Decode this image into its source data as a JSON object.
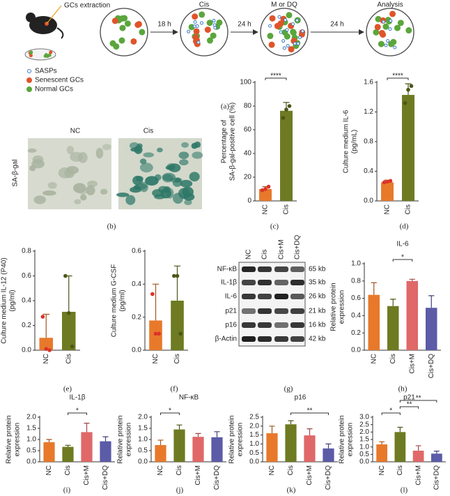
{
  "diagram": {
    "panel": "(a)",
    "steps": [
      "GCs extraction",
      "Cis",
      "M or DQ",
      "Analysis"
    ],
    "durations": [
      "18 h",
      "24 h",
      "24 h"
    ],
    "legend": [
      "SASPs",
      "Senescent GCs",
      "Normal GCs"
    ]
  },
  "micrographs": {
    "panel": "(b)",
    "stain": "SA-β-gal",
    "groups": [
      "NC",
      "Cis"
    ]
  },
  "blot": {
    "panel": "(g)",
    "lanes": [
      "NC",
      "Cis",
      "Cis+M",
      "Cis+DQ"
    ],
    "rows": [
      {
        "protein": "NF-κB",
        "size": "65 kb"
      },
      {
        "protein": "IL-1β",
        "size": "35 kb"
      },
      {
        "protein": "IL-6",
        "size": "26 kb"
      },
      {
        "protein": "p21",
        "size": "21 kb"
      },
      {
        "protein": "p16",
        "size": "16 kb"
      },
      {
        "protein": "β-Actin",
        "size": "42 kb"
      }
    ]
  },
  "chart_data": [
    {
      "type": "bar",
      "panel": "(c)",
      "ylabel": [
        "Percentage of",
        "SA-β-gal-positive cell (%)"
      ],
      "categories": [
        "NC",
        "Cis"
      ],
      "values": [
        10,
        76
      ],
      "errors": [
        2,
        7
      ],
      "colors": [
        "#e8792b",
        "#6e7b22"
      ],
      "points": [
        [
          9,
          10,
          12
        ],
        [
          70,
          77,
          80
        ]
      ],
      "ylim": [
        0,
        100
      ],
      "yticks": [
        0,
        20,
        40,
        60,
        80,
        100
      ],
      "significance": [
        {
          "pair": [
            "NC",
            "Cis"
          ],
          "label": "****"
        }
      ]
    },
    {
      "type": "bar",
      "panel": "(d)",
      "ylabel": [
        "Culture medium IL-6",
        "(pg/mL)"
      ],
      "categories": [
        "NC",
        "Cis"
      ],
      "values": [
        0.25,
        1.43
      ],
      "errors": [
        0.03,
        0.15
      ],
      "colors": [
        "#e8792b",
        "#6e7b22"
      ],
      "points": [
        [
          0.25,
          0.26,
          0.27
        ],
        [
          1.32,
          1.5,
          1.55
        ]
      ],
      "ylim": [
        0,
        1.6
      ],
      "yticks": [
        {
          "value": 0,
          "label": "0.0"
        },
        0.4,
        0.8,
        1.2,
        1.6
      ],
      "significance": [
        {
          "pair": [
            "NC",
            "Cis"
          ],
          "label": "****"
        }
      ]
    },
    {
      "type": "bar",
      "panel": "(e)",
      "ylabel": [
        "Culture medium IL-12 (P40)",
        "(pg/ml)"
      ],
      "categories": [
        "NC",
        "Cis"
      ],
      "values": [
        0.1,
        0.31
      ],
      "errors": [
        0.19,
        0.29
      ],
      "colors": [
        "#e8792b",
        "#6e7b22"
      ],
      "points": [
        [
          0.27,
          0.01,
          0.0
        ],
        [
          0.6,
          0.3,
          0.03
        ]
      ],
      "ylim": [
        0,
        0.8
      ],
      "yticks": [
        {
          "value": 0,
          "label": "0.0"
        },
        0.2,
        0.4,
        0.6,
        0.8
      ],
      "significance": []
    },
    {
      "type": "bar",
      "panel": "(f)",
      "ylabel": [
        "Culture medium G-CSF",
        "(pg/ml)"
      ],
      "categories": [
        "NC",
        "Cis"
      ],
      "values": [
        0.18,
        0.3
      ],
      "errors": [
        0.22,
        0.21
      ],
      "colors": [
        "#e8792b",
        "#6e7b22"
      ],
      "points": [
        [
          0.34,
          0.1,
          0.1
        ],
        [
          0.45,
          0.45,
          0.1
        ]
      ],
      "ylim": [
        0,
        0.6
      ],
      "yticks": [
        {
          "value": 0,
          "label": "0.0"
        },
        0.2,
        0.4,
        0.6
      ],
      "significance": []
    },
    {
      "type": "bar",
      "panel": "(h)",
      "title": "IL-6",
      "ylabel": [
        "Relative protein",
        "expression"
      ],
      "categories": [
        "NC",
        "Cis",
        "Cis+M",
        "Cis+DQ"
      ],
      "values": [
        0.64,
        0.51,
        0.8,
        0.49
      ],
      "errors": [
        0.14,
        0.08,
        0.02,
        0.14
      ],
      "colors": [
        "#e8792b",
        "#6e7b22",
        "#e06868",
        "#5b5ba8"
      ],
      "ylim": [
        0,
        1
      ],
      "yticks": [
        {
          "value": 0,
          "label": "0.0"
        },
        0.2,
        0.4,
        0.6,
        0.8,
        {
          "value": 1,
          "label": "1.0"
        }
      ],
      "significance": [
        {
          "pair": [
            "Cis",
            "Cis+M"
          ],
          "label": "*"
        }
      ]
    },
    {
      "type": "bar",
      "panel": "(i)",
      "title": "IL-1β",
      "ylabel": [
        "Relative protein",
        "expression"
      ],
      "categories": [
        "NC",
        "Cis",
        "Cis+M",
        "Cis+DQ"
      ],
      "values": [
        0.88,
        0.67,
        1.33,
        0.92
      ],
      "errors": [
        0.12,
        0.07,
        0.4,
        0.2
      ],
      "colors": [
        "#e8792b",
        "#6e7b22",
        "#e06868",
        "#5b5ba8"
      ],
      "ylim": [
        0,
        2
      ],
      "yticks": [
        {
          "value": 0,
          "label": "0.0"
        },
        0.5,
        {
          "value": 1,
          "label": "1.0"
        },
        1.5,
        {
          "value": 2,
          "label": "2.0"
        }
      ],
      "significance": [
        {
          "pair": [
            "Cis",
            "Cis+M"
          ],
          "label": "*"
        }
      ]
    },
    {
      "type": "bar",
      "panel": "(j)",
      "title": "NF-κB",
      "ylabel": [
        "Relative protein",
        "expression"
      ],
      "categories": [
        "NC",
        "Cis",
        "Cis+M",
        "Cis+DQ"
      ],
      "values": [
        0.75,
        1.45,
        1.12,
        1.1
      ],
      "errors": [
        0.22,
        0.2,
        0.15,
        0.25
      ],
      "colors": [
        "#e8792b",
        "#6e7b22",
        "#e06868",
        "#5b5ba8"
      ],
      "ylim": [
        0,
        2
      ],
      "yticks": [
        {
          "value": 0,
          "label": "0.0"
        },
        0.5,
        {
          "value": 1,
          "label": "1.0"
        },
        1.5,
        {
          "value": 2,
          "label": "2.0"
        }
      ],
      "significance": [
        {
          "pair": [
            "NC",
            "Cis"
          ],
          "label": "*"
        }
      ]
    },
    {
      "type": "bar",
      "panel": "(k)",
      "title": "p16",
      "ylabel": [
        "Relative protein",
        "expression"
      ],
      "categories": [
        "NC",
        "Cis",
        "Cis+M",
        "Cis+DQ"
      ],
      "values": [
        1.6,
        2.1,
        1.48,
        0.75
      ],
      "errors": [
        0.4,
        0.2,
        0.37,
        0.25
      ],
      "colors": [
        "#e8792b",
        "#6e7b22",
        "#e06868",
        "#5b5ba8"
      ],
      "ylim": [
        0,
        2.5
      ],
      "yticks": [
        {
          "value": 0,
          "label": "0.0"
        },
        0.5,
        {
          "value": 1,
          "label": "1.0"
        },
        1.5,
        {
          "value": 2,
          "label": "2.0"
        },
        2.5
      ],
      "significance": [
        {
          "pair": [
            "Cis",
            "Cis+DQ"
          ],
          "label": "**"
        }
      ]
    },
    {
      "type": "bar",
      "panel": "(l)",
      "title": "p21",
      "ylabel": [
        "Relative protein",
        "expression"
      ],
      "categories": [
        "NC",
        "Cis",
        "Cis+M",
        "Cis+DQ"
      ],
      "values": [
        1.17,
        2.0,
        0.75,
        0.55
      ],
      "errors": [
        0.18,
        0.32,
        0.33,
        0.17
      ],
      "colors": [
        "#e8792b",
        "#6e7b22",
        "#e06868",
        "#5b5ba8"
      ],
      "ylim": [
        0,
        3
      ],
      "yticks": [
        {
          "value": 0,
          "label": "0.0"
        },
        0.5,
        {
          "value": 1,
          "label": "1.0"
        },
        1.5,
        {
          "value": 2,
          "label": "2.0"
        },
        2.5,
        {
          "value": 3,
          "label": "3.0"
        }
      ],
      "significance": [
        {
          "pair": [
            "NC",
            "Cis"
          ],
          "label": "*"
        },
        {
          "pair": [
            "Cis",
            "Cis+M"
          ],
          "label": "**"
        },
        {
          "pair": [
            "Cis",
            "Cis+DQ"
          ],
          "label": "**"
        }
      ]
    }
  ]
}
